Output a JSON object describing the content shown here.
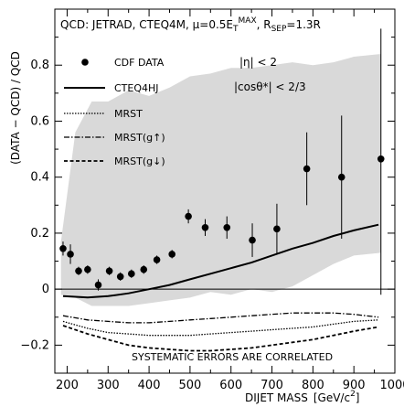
{
  "chart_data": {
    "type": "scatter",
    "title": "QCD: JETRAD, CTEQ4M, μ=0.5E",
    "title_sup": "MAX",
    "title_sub": "T",
    "title_rsep": ", R",
    "title_rsep_sub": "SEP",
    "title_rsep_val": "=1.3R",
    "cut_eta": "|η| < 2",
    "cut_theta": "|cosθ*| < 2/3",
    "note": "SYSTEMATIC ERRORS ARE CORRELATED",
    "xlabel": "DIJET MASS",
    "xunit": "[GeV/c",
    "xunit_sup": "2",
    "xunit_close": "]",
    "ylabel": "(DATA − QCD) / QCD",
    "xlim": [
      170,
      1000
    ],
    "ylim": [
      -0.3,
      1.0
    ],
    "xticks": [
      "200",
      "300",
      "400",
      "500",
      "600",
      "700",
      "800",
      "900",
      "1000"
    ],
    "yticks": [
      "−0.2",
      "0",
      "0.2",
      "0.4",
      "0.6",
      "0.8"
    ],
    "ytick_values": [
      -0.2,
      0,
      0.2,
      0.4,
      0.6,
      0.8
    ],
    "xtick_values": [
      200,
      300,
      400,
      500,
      600,
      700,
      800,
      900,
      1000
    ],
    "legend": {
      "cdf": "CDF DATA",
      "cteq": "CTEQ4HJ",
      "mrst": "MRST",
      "mrst_up": "MRST(g↑)",
      "mrst_down": "MRST(g↓)"
    },
    "data_points": [
      {
        "x": 190,
        "y": 0.145,
        "err": 0.025
      },
      {
        "x": 208,
        "y": 0.125,
        "err": 0.035
      },
      {
        "x": 228,
        "y": 0.065,
        "err": 0.015
      },
      {
        "x": 250,
        "y": 0.07,
        "err": 0.015
      },
      {
        "x": 276,
        "y": 0.015,
        "err": 0.02
      },
      {
        "x": 303,
        "y": 0.065,
        "err": 0.015
      },
      {
        "x": 330,
        "y": 0.045,
        "err": 0.015
      },
      {
        "x": 357,
        "y": 0.055,
        "err": 0.015
      },
      {
        "x": 387,
        "y": 0.07,
        "err": 0.015
      },
      {
        "x": 419,
        "y": 0.105,
        "err": 0.015
      },
      {
        "x": 456,
        "y": 0.125,
        "err": 0.015
      },
      {
        "x": 496,
        "y": 0.26,
        "err": 0.025
      },
      {
        "x": 537,
        "y": 0.22,
        "err": 0.03
      },
      {
        "x": 590,
        "y": 0.22,
        "err": 0.04
      },
      {
        "x": 652,
        "y": 0.175,
        "err": 0.06
      },
      {
        "x": 712,
        "y": 0.215,
        "err": 0.09
      },
      {
        "x": 785,
        "y": 0.43,
        "err": 0.13
      },
      {
        "x": 870,
        "y": 0.4,
        "err": 0.22
      },
      {
        "x": 966,
        "y": 0.465,
        "err": 0.5
      }
    ],
    "band_upper": [
      [
        185,
        0.17
      ],
      [
        220,
        0.56
      ],
      [
        260,
        0.67
      ],
      [
        300,
        0.67
      ],
      [
        350,
        0.71
      ],
      [
        400,
        0.69
      ],
      [
        450,
        0.72
      ],
      [
        500,
        0.76
      ],
      [
        550,
        0.77
      ],
      [
        600,
        0.79
      ],
      [
        650,
        0.79
      ],
      [
        700,
        0.8
      ],
      [
        750,
        0.81
      ],
      [
        800,
        0.8
      ],
      [
        850,
        0.81
      ],
      [
        900,
        0.83
      ],
      [
        966,
        0.84
      ]
    ],
    "band_lower": [
      [
        185,
        -0.02
      ],
      [
        220,
        -0.03
      ],
      [
        260,
        -0.06
      ],
      [
        300,
        -0.06
      ],
      [
        350,
        -0.06
      ],
      [
        400,
        -0.05
      ],
      [
        450,
        -0.04
      ],
      [
        500,
        -0.03
      ],
      [
        550,
        -0.01
      ],
      [
        600,
        -0.02
      ],
      [
        650,
        0.0
      ],
      [
        700,
        -0.01
      ],
      [
        750,
        0.01
      ],
      [
        800,
        0.05
      ],
      [
        850,
        0.09
      ],
      [
        900,
        0.12
      ],
      [
        966,
        0.13
      ]
    ],
    "curve_cteq4hj": [
      [
        190,
        -0.025
      ],
      [
        250,
        -0.03
      ],
      [
        300,
        -0.025
      ],
      [
        350,
        -0.015
      ],
      [
        400,
        0.0
      ],
      [
        450,
        0.015
      ],
      [
        500,
        0.035
      ],
      [
        550,
        0.055
      ],
      [
        600,
        0.075
      ],
      [
        650,
        0.095
      ],
      [
        700,
        0.12
      ],
      [
        750,
        0.145
      ],
      [
        800,
        0.165
      ],
      [
        850,
        0.19
      ],
      [
        900,
        0.21
      ],
      [
        960,
        0.23
      ]
    ],
    "curve_mrst": [
      [
        190,
        -0.115
      ],
      [
        250,
        -0.14
      ],
      [
        300,
        -0.155
      ],
      [
        350,
        -0.16
      ],
      [
        400,
        -0.165
      ],
      [
        450,
        -0.165
      ],
      [
        500,
        -0.165
      ],
      [
        550,
        -0.16
      ],
      [
        600,
        -0.155
      ],
      [
        650,
        -0.15
      ],
      [
        700,
        -0.145
      ],
      [
        750,
        -0.14
      ],
      [
        800,
        -0.135
      ],
      [
        850,
        -0.125
      ],
      [
        900,
        -0.115
      ],
      [
        960,
        -0.11
      ]
    ],
    "curve_mrst_up": [
      [
        190,
        -0.095
      ],
      [
        250,
        -0.11
      ],
      [
        300,
        -0.115
      ],
      [
        350,
        -0.12
      ],
      [
        400,
        -0.12
      ],
      [
        450,
        -0.115
      ],
      [
        500,
        -0.11
      ],
      [
        550,
        -0.105
      ],
      [
        600,
        -0.1
      ],
      [
        650,
        -0.095
      ],
      [
        700,
        -0.09
      ],
      [
        750,
        -0.085
      ],
      [
        800,
        -0.085
      ],
      [
        850,
        -0.085
      ],
      [
        900,
        -0.09
      ],
      [
        960,
        -0.1
      ]
    ],
    "curve_mrst_down": [
      [
        190,
        -0.13
      ],
      [
        250,
        -0.16
      ],
      [
        300,
        -0.18
      ],
      [
        350,
        -0.2
      ],
      [
        400,
        -0.21
      ],
      [
        450,
        -0.215
      ],
      [
        500,
        -0.22
      ],
      [
        550,
        -0.22
      ],
      [
        600,
        -0.215
      ],
      [
        650,
        -0.21
      ],
      [
        700,
        -0.2
      ],
      [
        750,
        -0.19
      ],
      [
        800,
        -0.18
      ],
      [
        850,
        -0.165
      ],
      [
        900,
        -0.15
      ],
      [
        960,
        -0.135
      ]
    ],
    "colors": {
      "band": "#d9d9d9",
      "ink": "#000000"
    }
  }
}
